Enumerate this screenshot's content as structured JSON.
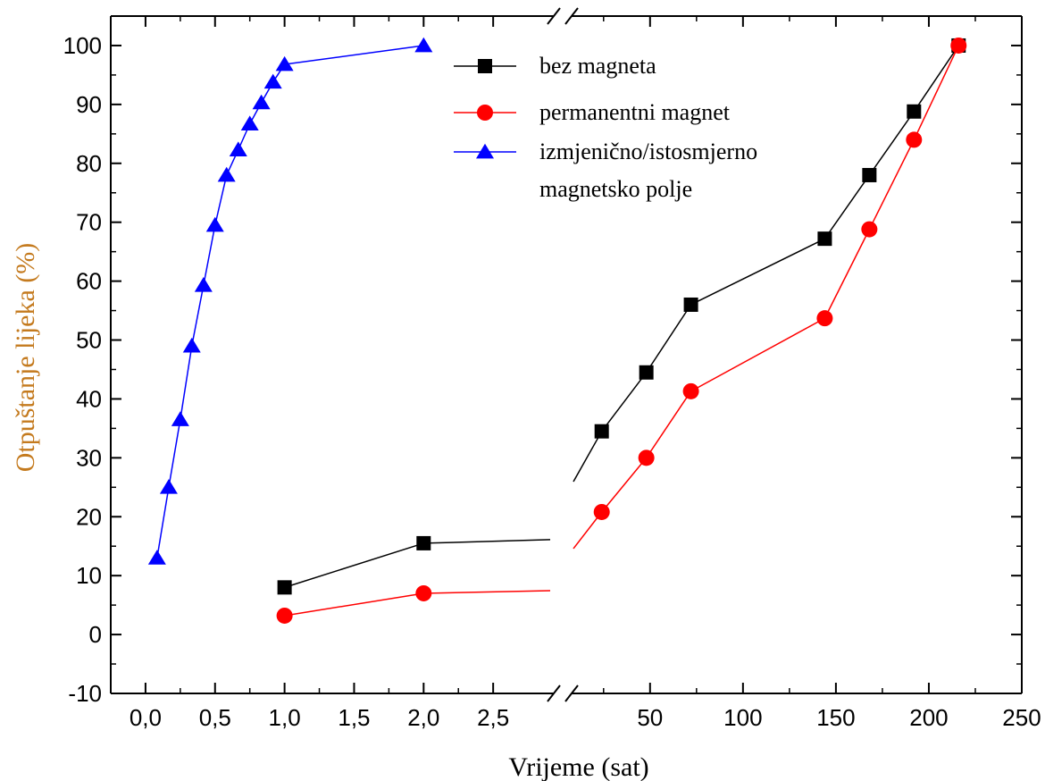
{
  "chart_data": {
    "type": "line",
    "xlabel": "Vrijeme (sat)",
    "ylabel": "Otpuštanje lijeka (%)",
    "ylim": [
      -10,
      105
    ],
    "yticks": [
      -10,
      0,
      10,
      20,
      30,
      40,
      50,
      60,
      70,
      80,
      90,
      100
    ],
    "ytick_labels": [
      "-10",
      "0",
      "10",
      "20",
      "30",
      "40",
      "50",
      "60",
      "70",
      "80",
      "90",
      "100"
    ],
    "x_axis_broken": true,
    "x_segment_left": {
      "xlim": [
        -0.25,
        3.0
      ],
      "xticks": [
        0.0,
        0.5,
        1.0,
        1.5,
        2.0,
        2.5
      ],
      "xtick_labels": [
        "0,0",
        "0,5",
        "1,0",
        "1,5",
        "2,0",
        "2,5"
      ]
    },
    "x_segment_right": {
      "xlim": [
        3.0,
        250
      ],
      "xticks": [
        50,
        100,
        150,
        200,
        250
      ],
      "xtick_labels": [
        "50",
        "100",
        "150",
        "200",
        "250"
      ]
    },
    "legend_position": "top",
    "series": [
      {
        "name": "bez magneta",
        "color": "#000000",
        "marker": "square",
        "x": [
          1,
          2,
          24,
          48,
          72,
          144,
          168,
          192,
          216
        ],
        "y": [
          8,
          15.5,
          34.5,
          44.5,
          56,
          67.2,
          78,
          88.8,
          100
        ]
      },
      {
        "name": "permanentni magnet",
        "color": "#ff0000",
        "marker": "circle",
        "x": [
          1,
          2,
          24,
          48,
          72,
          144,
          168,
          192,
          216
        ],
        "y": [
          3.2,
          7,
          20.8,
          30,
          41.3,
          53.7,
          68.8,
          84,
          100
        ]
      },
      {
        "name": "izmjenično/istosmjerno magnetsko polje",
        "legend_lines": [
          "izmjenično/istosmjerno",
          "magnetsko polje"
        ],
        "color": "#0000ff",
        "marker": "triangle",
        "x": [
          0.083,
          0.167,
          0.25,
          0.333,
          0.417,
          0.5,
          0.583,
          0.667,
          0.75,
          0.833,
          0.917,
          1.0,
          2.0
        ],
        "y": [
          13,
          25,
          36.5,
          49,
          59.3,
          69.5,
          78,
          82.3,
          86.7,
          90.3,
          93.8,
          96.8,
          100
        ]
      }
    ]
  }
}
